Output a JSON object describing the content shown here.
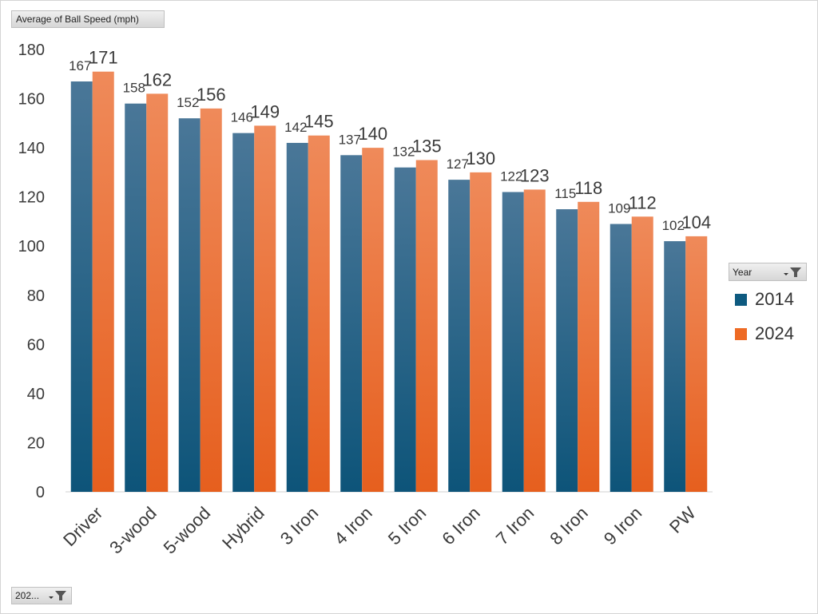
{
  "value_field": {
    "label": "Average of Ball Speed (mph)"
  },
  "legend_field": {
    "label": "Year"
  },
  "page_filter": {
    "label": "202..."
  },
  "colors": {
    "series_2014": "#0e5a80",
    "series_2024": "#ee6a24",
    "axis": "#d0d0d0"
  },
  "icons": {
    "filter": "filter-funnel-icon",
    "dropdown": "dropdown-arrow-icon"
  },
  "chart_data": {
    "type": "bar",
    "ylabel": "Average of Ball Speed (mph)",
    "ylim": [
      0,
      180
    ],
    "yticks": [
      0,
      20,
      40,
      60,
      80,
      100,
      120,
      140,
      160,
      180
    ],
    "grid": false,
    "legend_position": "right",
    "legend_title": "Year",
    "categories": [
      "Driver",
      "3-wood",
      "5-wood",
      "Hybrid",
      "3 Iron",
      "4 Iron",
      "5 Iron",
      "6 Iron",
      "7 Iron",
      "8 Iron",
      "9 Iron",
      "PW"
    ],
    "series": [
      {
        "name": "2014",
        "color": "#0e5a80",
        "values": [
          167,
          158,
          152,
          146,
          142,
          137,
          132,
          127,
          122,
          115,
          109,
          102
        ]
      },
      {
        "name": "2024",
        "color": "#ee6a24",
        "values": [
          171,
          162,
          156,
          149,
          145,
          140,
          135,
          130,
          123,
          118,
          112,
          104
        ]
      }
    ]
  }
}
